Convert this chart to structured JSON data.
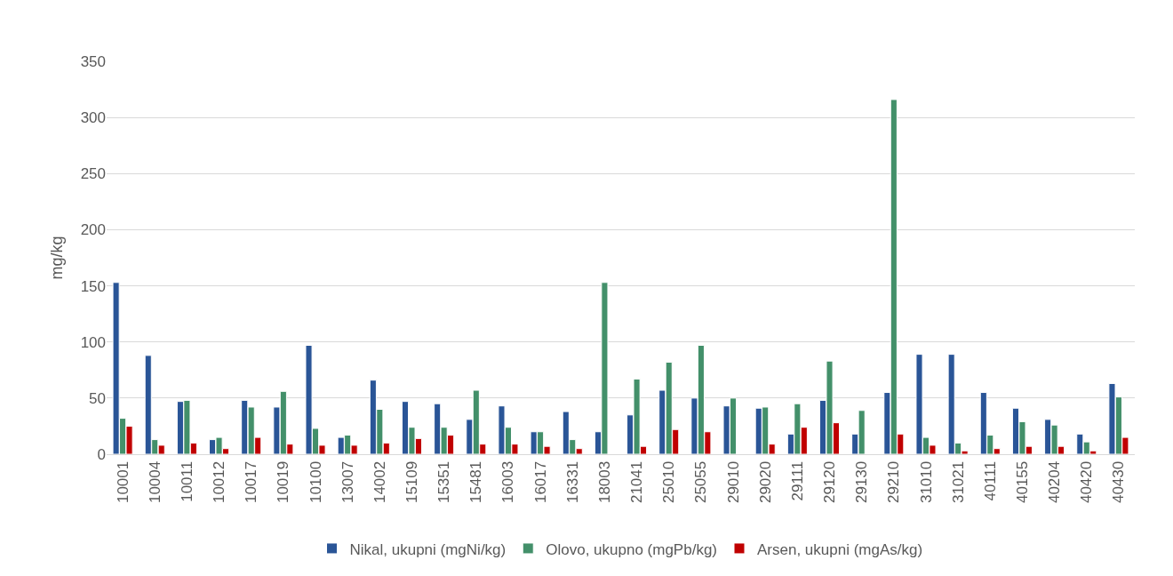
{
  "chart_data": {
    "type": "bar",
    "ylabel": "mg/kg",
    "categories": [
      "10001",
      "10004",
      "10011",
      "10012",
      "10017",
      "10019",
      "10100",
      "13007",
      "14002",
      "15109",
      "15351",
      "15481",
      "16003",
      "16017",
      "16331",
      "18003",
      "21041",
      "25010",
      "25055",
      "29010",
      "29020",
      "29111",
      "29120",
      "29130",
      "29210",
      "31010",
      "31021",
      "40111",
      "40155",
      "40204",
      "40420",
      "40430"
    ],
    "series": [
      {
        "name": "Nikal, ukupni (mgNi/kg)",
        "color": "#2a5597",
        "values": [
          153,
          88,
          47,
          13,
          48,
          42,
          97,
          15,
          66,
          47,
          45,
          31,
          43,
          20,
          38,
          20,
          35,
          57,
          50,
          43,
          41,
          18,
          48,
          18,
          55,
          89,
          89,
          55,
          41,
          31,
          18,
          63
        ]
      },
      {
        "name": "Olovo, ukupno (mgPb/kg)",
        "color": "#43906a",
        "values": [
          32,
          13,
          48,
          15,
          42,
          56,
          23,
          17,
          40,
          24,
          24,
          57,
          24,
          20,
          13,
          153,
          67,
          82,
          97,
          50,
          42,
          45,
          83,
          39,
          316,
          15,
          10,
          17,
          29,
          26,
          11,
          51
        ]
      },
      {
        "name": "Arsen, ukupni (mgAs/kg)",
        "color": "#c00000",
        "values": [
          25,
          8,
          10,
          5,
          15,
          9,
          8,
          8,
          10,
          14,
          17,
          9,
          9,
          7,
          5,
          null,
          7,
          22,
          20,
          null,
          9,
          24,
          28,
          null,
          18,
          8,
          3,
          5,
          7,
          7,
          3,
          15
        ]
      }
    ],
    "ylim": [
      0,
      350
    ],
    "yticks": [
      0,
      50,
      100,
      150,
      200,
      250,
      300,
      350
    ],
    "grid": "y",
    "legend": "bottom"
  }
}
